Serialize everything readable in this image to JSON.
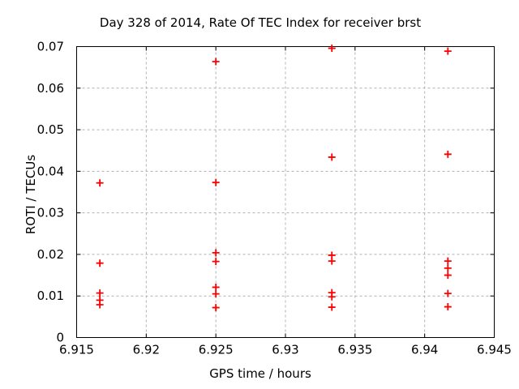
{
  "window": {
    "background": "#ffffff"
  },
  "chart_data": {
    "type": "scatter",
    "title": "Day 328 of 2014, Rate Of TEC Index for receiver brst",
    "xlabel": "GPS time / hours",
    "ylabel": "ROTI / TECUs",
    "xlim": [
      6.915,
      6.945
    ],
    "ylim": [
      0,
      0.07
    ],
    "x_ticks": [
      6.915,
      6.92,
      6.925,
      6.93,
      6.935,
      6.94,
      6.945
    ],
    "x_tick_labels": [
      "6.915",
      "6.92",
      "6.925",
      "6.93",
      "6.935",
      "6.94",
      "6.945"
    ],
    "y_ticks": [
      0,
      0.01,
      0.02,
      0.03,
      0.04,
      0.05,
      0.06,
      0.07
    ],
    "y_tick_labels": [
      "0",
      "0.01",
      "0.02",
      "0.03",
      "0.04",
      "0.05",
      "0.06",
      "0.07"
    ],
    "grid": true,
    "grid_style": "dashed",
    "legend": "none",
    "marker": {
      "shape": "plus",
      "color": "#ff0000",
      "size": 9,
      "stroke_width": 1.8
    },
    "grid_color": "#b0b0b0",
    "axis_color": "#000000",
    "series": [
      {
        "name": "ROTI",
        "points": [
          {
            "x": 6.916667,
            "y": 0.0372
          },
          {
            "x": 6.916667,
            "y": 0.0179
          },
          {
            "x": 6.916667,
            "y": 0.0107
          },
          {
            "x": 6.916667,
            "y": 0.009
          },
          {
            "x": 6.916667,
            "y": 0.0079
          },
          {
            "x": 6.925,
            "y": 0.0664
          },
          {
            "x": 6.925,
            "y": 0.0373
          },
          {
            "x": 6.925,
            "y": 0.0204
          },
          {
            "x": 6.925,
            "y": 0.0183
          },
          {
            "x": 6.925,
            "y": 0.0121
          },
          {
            "x": 6.925,
            "y": 0.0105
          },
          {
            "x": 6.925,
            "y": 0.0072
          },
          {
            "x": 6.933333,
            "y": 0.0696
          },
          {
            "x": 6.933333,
            "y": 0.0434
          },
          {
            "x": 6.933333,
            "y": 0.0198
          },
          {
            "x": 6.933333,
            "y": 0.0184
          },
          {
            "x": 6.933333,
            "y": 0.0108
          },
          {
            "x": 6.933333,
            "y": 0.0098
          },
          {
            "x": 6.933333,
            "y": 0.0073
          },
          {
            "x": 6.941667,
            "y": 0.0689
          },
          {
            "x": 6.941667,
            "y": 0.0441
          },
          {
            "x": 6.941667,
            "y": 0.0184
          },
          {
            "x": 6.941667,
            "y": 0.0167
          },
          {
            "x": 6.941667,
            "y": 0.015
          },
          {
            "x": 6.941667,
            "y": 0.0106
          },
          {
            "x": 6.941667,
            "y": 0.0074
          }
        ]
      }
    ]
  }
}
